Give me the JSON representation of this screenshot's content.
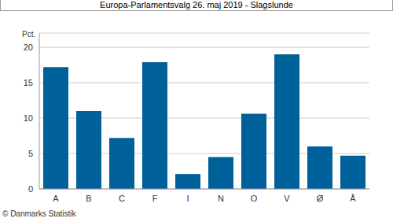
{
  "chart_data": {
    "type": "bar",
    "title": "Europa-Parlamentsvalg 26. maj 2019 - Slagslunde",
    "ylabel": "Pct.",
    "footer": "© Danmarks Statistik",
    "categories": [
      "A",
      "B",
      "C",
      "F",
      "I",
      "N",
      "O",
      "V",
      "Ø",
      "Å"
    ],
    "values": [
      17.2,
      11.0,
      7.2,
      17.9,
      2.1,
      4.5,
      10.6,
      19.0,
      6.0,
      4.7
    ],
    "color": "#00609a",
    "ylim": [
      0,
      22
    ],
    "yticks": [
      0,
      5,
      10,
      15,
      20
    ],
    "grid": true
  }
}
